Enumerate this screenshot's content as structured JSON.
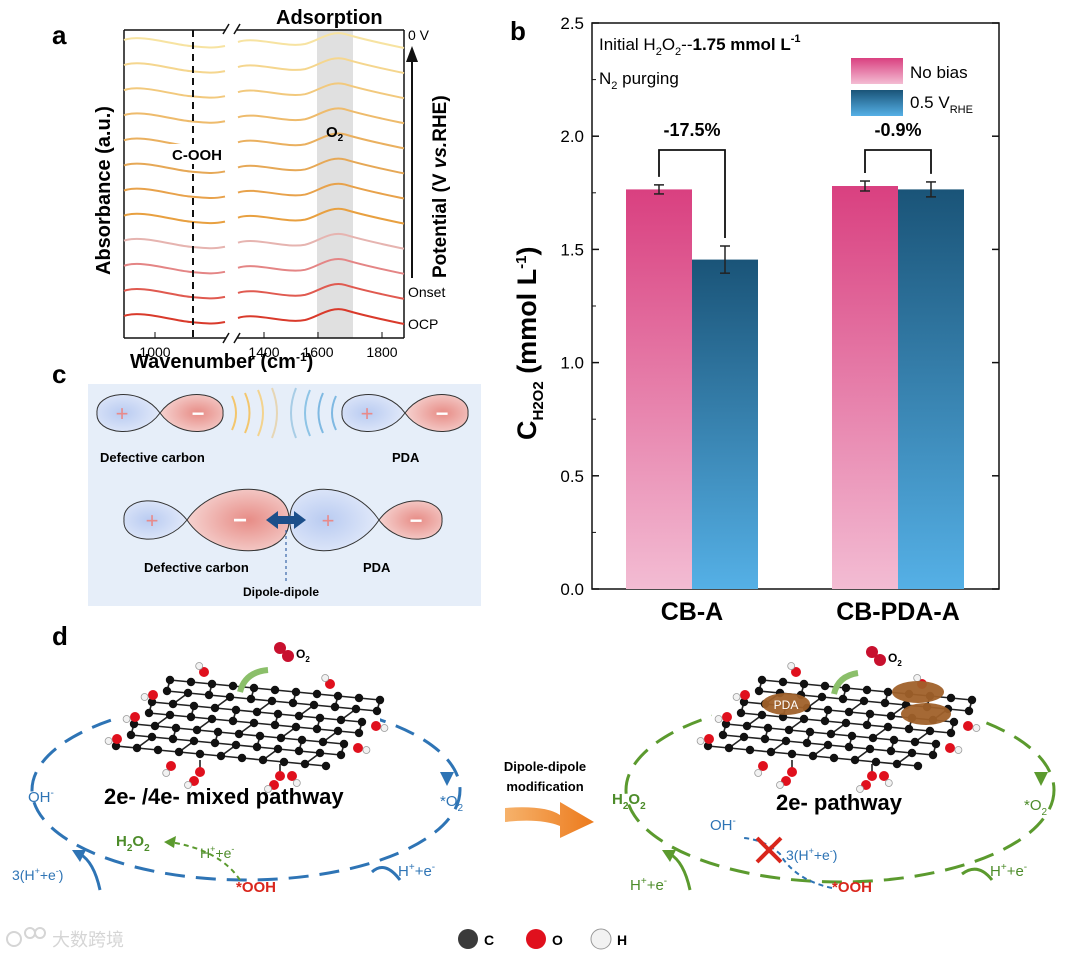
{
  "panel_labels": {
    "a": "a",
    "b": "b",
    "c": "c",
    "d": "d"
  },
  "panel_a": {
    "title": "Adsorption",
    "xlabel": "Wavenumber (cm",
    "xlabel_sup": "-1",
    "xlabel_end": ")",
    "ylabel": "Absorbance (a.u.)",
    "ticks": [
      "1000",
      "1400",
      "1600",
      "1800"
    ],
    "peak_label": "C-OOH",
    "o2_label": "O",
    "o2_sub": "2",
    "right_labels": {
      "top": "0 V",
      "onset": "Onset",
      "ocp": "OCP"
    },
    "potential_label_1": "Potential (V ",
    "potential_label_italic": "vs.",
    "potential_label_2": "RHE)",
    "curve_colors": [
      "#f7e3a1",
      "#f5d68e",
      "#f2c97d",
      "#eebb6c",
      "#eab05f",
      "#e6a856",
      "#e8a24b",
      "#e8a040",
      "#e6b4b0",
      "#e48585",
      "#e05a50",
      "#d93a2b"
    ]
  },
  "panel_b": {
    "annotation_line1_prefix": "Initial H",
    "annotation_line1_sub1": "2",
    "annotation_line1_mid": "O",
    "annotation_line1_sub2": "2",
    "annotation_line1_dash": "--",
    "annotation_line1_value": "1.75 mmol L",
    "annotation_line1_sup": "-1",
    "annotation_line2_prefix": "N",
    "annotation_line2_sub": "2",
    "annotation_line2_suffix": " purging",
    "legend": {
      "no_bias": "No bias",
      "bias": "0.5 V",
      "bias_sub": "RHE"
    },
    "ylabel_main": "C",
    "ylabel_sub": "H2O2",
    "ylabel_units": " (mmol L",
    "ylabel_sup": "-1",
    "ylabel_close": ")",
    "change_labels": [
      "-17.5%",
      "-0.9%"
    ]
  },
  "chart_data": {
    "type": "bar",
    "title": "",
    "categories": [
      "CB-A",
      "CB-PDA-A"
    ],
    "series": [
      {
        "name": "No bias",
        "values": [
          1.765,
          1.78
        ],
        "errors": [
          0.02,
          0.022
        ],
        "color_top": "#d94080",
        "color_bottom": "#f3bcd3"
      },
      {
        "name": "0.5 V RHE",
        "values": [
          1.455,
          1.765
        ],
        "errors": [
          0.06,
          0.033
        ],
        "color_top": "#1a5478",
        "color_bottom": "#55b0e6"
      }
    ],
    "ylim": [
      0,
      2.5
    ],
    "yticks": [
      "0.0",
      "0.5",
      "1.0",
      "1.5",
      "2.0",
      "2.5"
    ],
    "ytick_values": [
      0,
      0.5,
      1.0,
      1.5,
      2.0,
      2.5
    ],
    "xlabel": "",
    "ylabel": "CH2O2 (mmol L-1)"
  },
  "panel_c": {
    "top_left_label": "Defective carbon",
    "top_right_label": "PDA",
    "bottom_left_label": "Defective carbon",
    "bottom_right_label": "PDA",
    "interaction_label": "Dipole-dipole",
    "plus": "+",
    "minus": "−"
  },
  "panel_d": {
    "left_title": "2e- /4e- mixed pathway",
    "right_title": "2e- pathway",
    "arrow_label_1": "Dipole-dipole",
    "arrow_label_2": "modification",
    "o2": "O",
    "o2_sub": "2",
    "pda_badge": "PDA",
    "oh": "OH",
    "oh_sup": "-",
    "star_o2": "*O",
    "star_o2_sub": "2",
    "h2o2": "H",
    "h2o2_sub1": "2",
    "h2o2_o": "O",
    "h2o2_sub2": "2",
    "h_plus_e": "H",
    "h_plus_e_sup": "+",
    "h_plus_e_tail": "+e",
    "h_plus_e_tail_sup": "-",
    "three_h_prefix": "3(H",
    "three_h_sup1": "+",
    "three_h_mid": "+e",
    "three_h_sup2": "-",
    "three_h_close": ")",
    "ooh": "*OOH",
    "legend_c": "C",
    "legend_o": "O",
    "legend_h": "H"
  },
  "watermark": "大数跨境"
}
